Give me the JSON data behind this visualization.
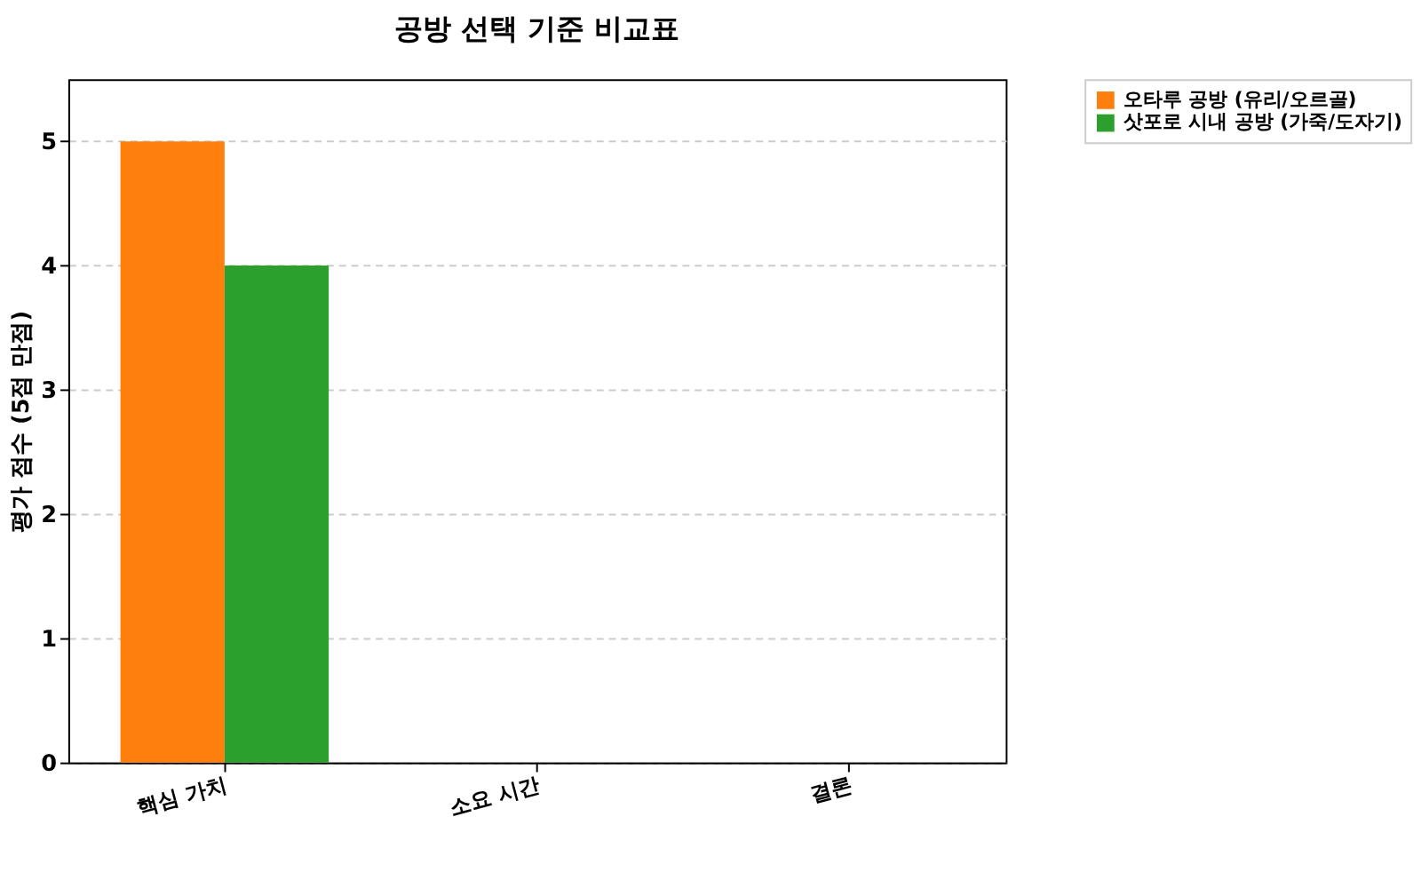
{
  "chart_data": {
    "type": "bar",
    "title": "공방 선택 기준 비교표",
    "ylabel": "평가 점수 (5점 만점)",
    "categories": [
      "핵심 가치",
      "소요 시간",
      "결론"
    ],
    "series": [
      {
        "name": "오타루 공방 (유리/오르골)",
        "color": "#ff7f0e",
        "values": [
          5,
          null,
          null
        ]
      },
      {
        "name": "삿포로 시내 공방 (가죽/도자기)",
        "color": "#2ca02c",
        "values": [
          4,
          null,
          null
        ]
      }
    ],
    "ylim": [
      0,
      5.5
    ],
    "yticks": [
      0,
      1,
      2,
      3,
      4,
      5
    ],
    "grid": "y",
    "legend": "top right"
  }
}
